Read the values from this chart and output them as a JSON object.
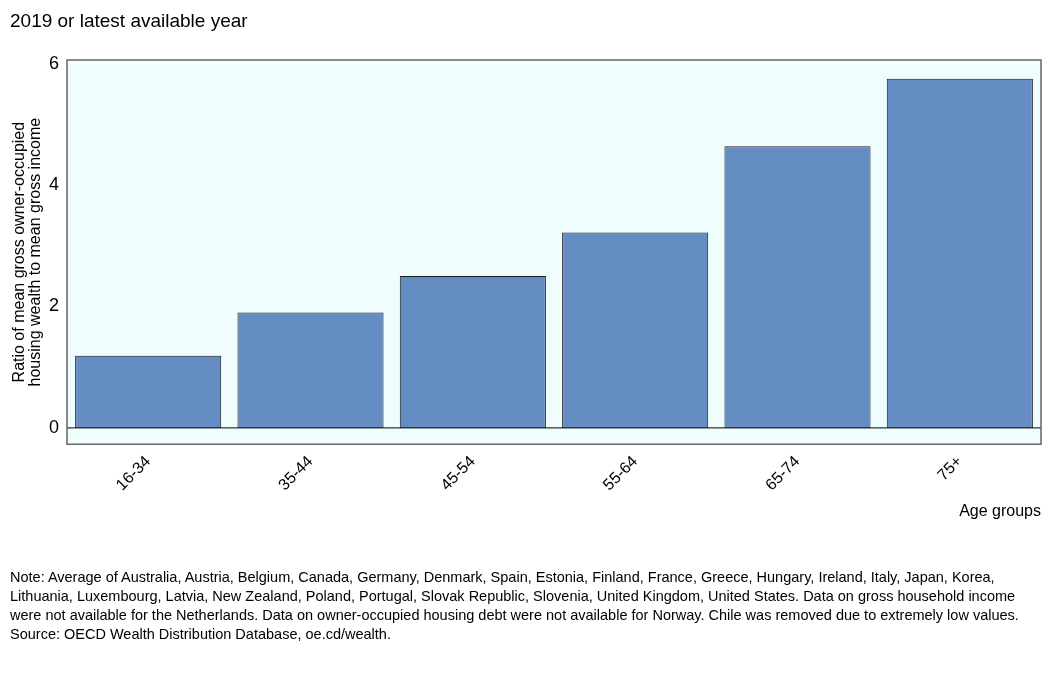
{
  "chart_data": {
    "type": "bar",
    "title": "2019 or latest available year",
    "xlabel": "Age groups",
    "ylabel": "Ratio of mean gross owner-occupied housing wealth to mean gross income",
    "categories": [
      "16-34",
      "35-44",
      "45-54",
      "55-64",
      "65-74",
      "75+"
    ],
    "values": [
      1.19,
      1.9,
      2.5,
      3.22,
      4.64,
      5.75
    ],
    "color": "#648dc3",
    "ylim": [
      -0.27,
      6.06
    ],
    "yticks": [
      0,
      2,
      4,
      6
    ],
    "grid": false,
    "legend": false,
    "ref_lines": [
      {
        "axis": "y",
        "value": 0,
        "color": "#000000"
      }
    ],
    "annotations": [
      "Note: Average of Australia, Austria, Belgium, Canada, Germany, Denmark, Spain, Estonia, Finland, France, Greece, Hungary, Ireland, Italy, Japan, Korea, Lithuania, Luxembourg, Latvia, New Zealand, Poland, Portugal, Slovak Republic, Slovenia, United Kingdom, United States. Data on gross household income were not available for the Netherlands. Data on owner-occupied housing debt were not available for Norway. Chile was removed due to extremely low values.",
      "Source: OECD Wealth Distribution Database, oe.cd/wealth."
    ]
  }
}
